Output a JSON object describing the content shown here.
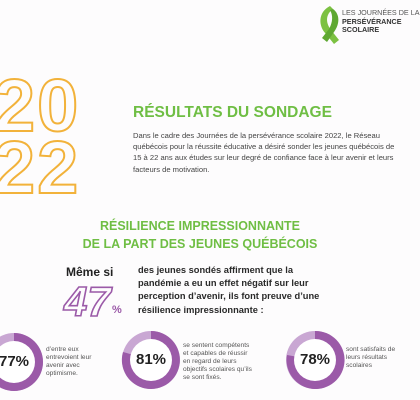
{
  "logo": {
    "lines": [
      "LES JOURNÉES DE LA",
      "PERSÉVÉRANCE",
      "SCOLAIRE"
    ]
  },
  "year": [
    "20",
    "22"
  ],
  "title": "RÉSULTATS DU SONDAGE",
  "intro": "Dans le cadre des Journées de la persévérance scolaire 2022, le Réseau québécois pour la réussite éducative a désiré sonder les jeunes québécois de 15 à 22 ans aux études sur leur degré de confiance face à leur avenir et leurs facteurs de motivation.",
  "section": {
    "title": [
      "RÉSILIENCE IMPRESSIONNANTE",
      "DE LA PART DES JEUNES QUÉBÉCOIS"
    ],
    "lead": "Même si",
    "big_number": "47",
    "big_unit": "%",
    "text": "des jeunes sondés affirment que la pandémie a eu un effet négatif sur leur perception d’avenir, ils font preuve d’une résilience impressionnante :"
  },
  "stats": [
    {
      "value": "77%",
      "text": "d’entre eux entrevoient leur avenir avec optimisme."
    },
    {
      "value": "81%",
      "text": "se sentent compétents et capables de réussir en regard de leurs objectifs scolaires qu’ils se sont fixés."
    },
    {
      "value": "78%",
      "text": "sont satisfaits de leurs résultats scolaires"
    }
  ]
}
